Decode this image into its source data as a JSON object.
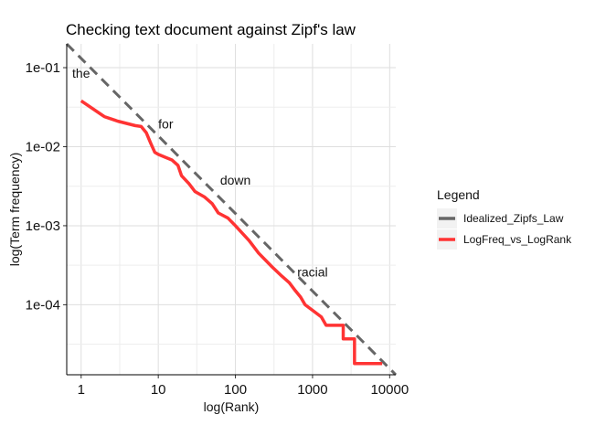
{
  "chart_data": {
    "type": "line",
    "title": "Checking text document against Zipf's law",
    "xlabel": "log(Rank)",
    "ylabel": "log(Term frequency)",
    "x_scale": "log10",
    "y_scale": "log10",
    "xlim": [
      0.65,
      12000
    ],
    "ylim": [
      1.3e-05,
      0.2
    ],
    "x_ticks": [
      {
        "value": 1,
        "label": "1"
      },
      {
        "value": 10,
        "label": "10"
      },
      {
        "value": 100,
        "label": "100"
      },
      {
        "value": 1000,
        "label": "1000"
      },
      {
        "value": 10000,
        "label": "10000"
      }
    ],
    "y_ticks": [
      {
        "value": 0.1,
        "label": "1e-01"
      },
      {
        "value": 0.01,
        "label": "1e-02"
      },
      {
        "value": 0.001,
        "label": "1e-03"
      },
      {
        "value": 0.0001,
        "label": "1e-04"
      }
    ],
    "grid": true,
    "legend": {
      "title": "Legend",
      "position": "right",
      "entries": [
        {
          "name": "Idealized_Zipfs_Law",
          "color": "#666666",
          "style": "dashed"
        },
        {
          "name": "LogFreq_vs_LogRank",
          "color": "#ff3333",
          "style": "solid"
        }
      ]
    },
    "series": [
      {
        "name": "Idealized_Zipfs_Law",
        "color": "#666666",
        "x": [
          0.65,
          12000
        ],
        "y": [
          0.2,
          1.3e-05
        ]
      },
      {
        "name": "LogFreq_vs_LogRank",
        "color": "#ff3333",
        "x": [
          1,
          2,
          3,
          5,
          6,
          7,
          8,
          9,
          10,
          13,
          15,
          18,
          20,
          25,
          30,
          40,
          50,
          60,
          80,
          100,
          150,
          200,
          300,
          400,
          500,
          600,
          700,
          800,
          1000,
          1300,
          1500,
          1500,
          2500,
          2500,
          3500,
          3500,
          8000
        ],
        "y": [
          0.038,
          0.024,
          0.021,
          0.0185,
          0.018,
          0.015,
          0.011,
          0.0085,
          0.008,
          0.0072,
          0.0068,
          0.0058,
          0.0043,
          0.0034,
          0.0027,
          0.0023,
          0.0019,
          0.00145,
          0.00125,
          0.001,
          0.00065,
          0.00045,
          0.0003,
          0.00023,
          0.00019,
          0.00015,
          0.000125,
          0.0001,
          8.5e-05,
          7e-05,
          5.5e-05,
          5.5e-05,
          5.5e-05,
          3.7e-05,
          3.7e-05,
          1.8e-05,
          1.8e-05
        ]
      }
    ],
    "annotations": [
      {
        "text": "the",
        "x": 1,
        "y": 0.085
      },
      {
        "text": "for",
        "x": 12.5,
        "y": 0.0195
      },
      {
        "text": "down",
        "x": 100,
        "y": 0.0038
      },
      {
        "text": "racial",
        "x": 1000,
        "y": 0.00026
      }
    ]
  }
}
